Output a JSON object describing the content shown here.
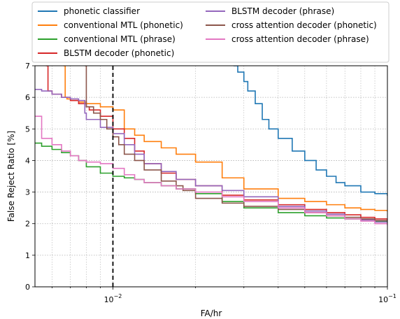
{
  "chart_data": {
    "type": "line",
    "xlabel": "FA/hr",
    "ylabel": "False Reject Ratio [%]",
    "x_scale": "log",
    "xlim": [
      0.0052,
      0.1
    ],
    "ylim": [
      0,
      7
    ],
    "yticks": [
      0,
      1,
      2,
      3,
      4,
      5,
      6,
      7
    ],
    "xticks_major": [
      {
        "value": 0.01,
        "base": "10",
        "exp": "−2"
      },
      {
        "value": 0.1,
        "base": "10",
        "exp": "−1"
      }
    ],
    "grid": true,
    "legend_position": "top",
    "reference_line": {
      "x": 0.01,
      "style": "dashed",
      "color": "#000000"
    },
    "series": [
      {
        "name": "phonetic classifier",
        "color": "#1f77b4",
        "x": [
          0.0275,
          0.0285,
          0.03,
          0.031,
          0.033,
          0.035,
          0.037,
          0.04,
          0.045,
          0.05,
          0.055,
          0.06,
          0.065,
          0.07,
          0.08,
          0.09,
          0.1
        ],
        "y": [
          7.0,
          6.8,
          6.5,
          6.2,
          5.8,
          5.3,
          5.0,
          4.7,
          4.3,
          4.0,
          3.7,
          3.5,
          3.3,
          3.2,
          3.0,
          2.95,
          2.88
        ]
      },
      {
        "name": "conventional MTL (phonetic)",
        "color": "#ff7f0e",
        "x": [
          0.0066,
          0.0067,
          0.0068,
          0.007,
          0.0075,
          0.008,
          0.009,
          0.01,
          0.011,
          0.012,
          0.013,
          0.015,
          0.017,
          0.02,
          0.025,
          0.03,
          0.04,
          0.05,
          0.06,
          0.07,
          0.08,
          0.09,
          0.1
        ],
        "y": [
          7.0,
          6.0,
          5.95,
          5.9,
          5.85,
          5.8,
          5.7,
          5.6,
          5.0,
          4.8,
          4.6,
          4.4,
          4.2,
          3.95,
          3.45,
          3.1,
          2.8,
          2.7,
          2.6,
          2.5,
          2.45,
          2.42,
          2.38
        ]
      },
      {
        "name": "conventional MTL (phrase)",
        "color": "#2ca02c",
        "x": [
          0.0052,
          0.0055,
          0.006,
          0.0065,
          0.007,
          0.0075,
          0.008,
          0.009,
          0.01,
          0.011,
          0.012,
          0.013,
          0.015,
          0.017,
          0.02,
          0.025,
          0.03,
          0.04,
          0.05,
          0.06,
          0.07,
          0.08,
          0.09,
          0.1
        ],
        "y": [
          4.55,
          4.45,
          4.35,
          4.25,
          4.15,
          4.0,
          3.8,
          3.6,
          3.5,
          3.45,
          3.4,
          3.3,
          3.2,
          3.1,
          2.95,
          2.7,
          2.5,
          2.35,
          2.25,
          2.18,
          2.15,
          2.12,
          2.08,
          2.05
        ]
      },
      {
        "name": "BLSTM decoder (phonetic)",
        "color": "#d62728",
        "x": [
          0.0057,
          0.0058,
          0.006,
          0.0065,
          0.007,
          0.0075,
          0.008,
          0.0082,
          0.009,
          0.01,
          0.011,
          0.012,
          0.013,
          0.015,
          0.017,
          0.02,
          0.025,
          0.03,
          0.04,
          0.05,
          0.06,
          0.07,
          0.08,
          0.09,
          0.1
        ],
        "y": [
          7.0,
          6.2,
          6.1,
          6.0,
          5.9,
          5.8,
          5.7,
          5.6,
          5.4,
          5.0,
          4.7,
          4.3,
          3.9,
          3.6,
          3.4,
          3.2,
          2.9,
          2.75,
          2.6,
          2.45,
          2.35,
          2.28,
          2.2,
          2.15,
          2.1
        ]
      },
      {
        "name": "BLSTM decoder (phrase)",
        "color": "#9467bd",
        "x": [
          0.0052,
          0.0055,
          0.006,
          0.0065,
          0.007,
          0.0075,
          0.0078,
          0.0079,
          0.008,
          0.009,
          0.01,
          0.011,
          0.012,
          0.013,
          0.015,
          0.017,
          0.02,
          0.025,
          0.03,
          0.04,
          0.05,
          0.06,
          0.07,
          0.08,
          0.09,
          0.1
        ],
        "y": [
          6.25,
          6.2,
          6.1,
          6.0,
          5.95,
          5.9,
          5.9,
          5.5,
          5.3,
          5.05,
          4.85,
          4.5,
          4.2,
          3.9,
          3.65,
          3.4,
          3.2,
          3.05,
          2.85,
          2.55,
          2.4,
          2.3,
          2.2,
          2.12,
          2.05,
          2.0
        ]
      },
      {
        "name": "cross attention decoder (phonetic)",
        "color": "#8c564b",
        "x": [
          0.0079,
          0.008,
          0.0085,
          0.009,
          0.0095,
          0.01,
          0.0105,
          0.011,
          0.012,
          0.013,
          0.015,
          0.017,
          0.018,
          0.02,
          0.025,
          0.03,
          0.04,
          0.05,
          0.06,
          0.07,
          0.08,
          0.09,
          0.1
        ],
        "y": [
          7.0,
          5.7,
          5.5,
          5.3,
          5.0,
          4.75,
          4.5,
          4.2,
          4.0,
          3.7,
          3.35,
          3.2,
          3.05,
          2.8,
          2.65,
          2.55,
          2.45,
          2.35,
          2.25,
          2.2,
          2.15,
          2.1,
          2.05
        ]
      },
      {
        "name": "cross attention decoder (phrase)",
        "color": "#e377c2",
        "x": [
          0.0052,
          0.0055,
          0.006,
          0.0065,
          0.007,
          0.0075,
          0.008,
          0.009,
          0.01,
          0.011,
          0.012,
          0.013,
          0.015,
          0.017,
          0.02,
          0.025,
          0.03,
          0.04,
          0.05,
          0.06,
          0.07,
          0.08,
          0.09,
          0.1
        ],
        "y": [
          5.4,
          4.7,
          4.5,
          4.3,
          4.15,
          4.0,
          3.95,
          3.9,
          3.75,
          3.55,
          3.4,
          3.3,
          3.2,
          3.1,
          3.0,
          2.85,
          2.7,
          2.5,
          2.35,
          2.25,
          2.15,
          2.08,
          2.0,
          1.95
        ]
      }
    ]
  }
}
